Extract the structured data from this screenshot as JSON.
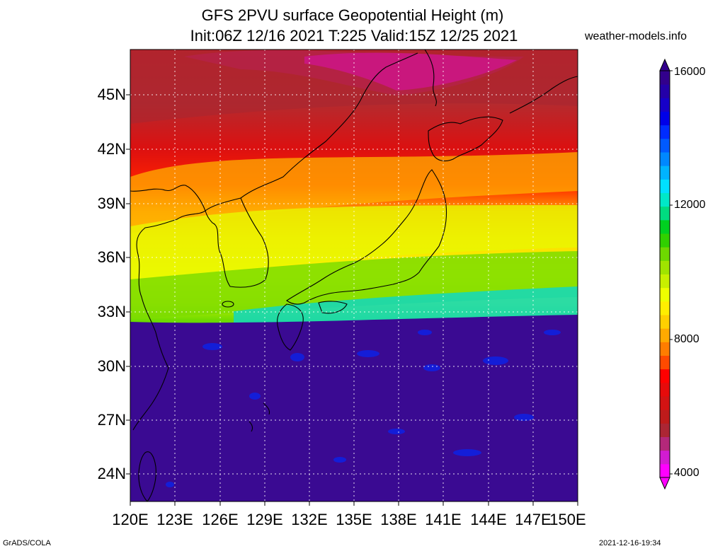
{
  "title": {
    "line1": "GFS 2PVU surface Geopotential Height (m)",
    "line2": "Init:06Z 12/16 2021 T:225 Valid:15Z 12/25 2021"
  },
  "site": "weather-models.info",
  "footer": {
    "left": "GrADS/COLA",
    "right": "2021-12-16-19:34"
  },
  "map": {
    "region": "Japan / Korea / East China Sea",
    "lon_range": [
      120,
      150
    ],
    "lat_range": [
      22.5,
      47.5
    ],
    "lat_labels": [
      "45N",
      "42N",
      "39N",
      "36N",
      "33N",
      "30N",
      "27N",
      "24N"
    ],
    "lon_labels": [
      "120E",
      "123E",
      "126E",
      "129E",
      "132E",
      "135E",
      "138E",
      "141E",
      "144E",
      "147E",
      "150E"
    ],
    "grid": true
  },
  "colorbar": {
    "labels": [
      "16000",
      "12000",
      "8000",
      "4000"
    ],
    "min": 4000,
    "max": 16000,
    "colors": [
      "#ff00ff",
      "#d21cd2",
      "#b4287a",
      "#ac2634",
      "#be1b1b",
      "#d31313",
      "#e60b0b",
      "#ff0000",
      "#ff4a00",
      "#ff7d00",
      "#ffaa00",
      "#ffd000",
      "#ffee00",
      "#eeff00",
      "#c8f000",
      "#a0e400",
      "#6ed800",
      "#30d000",
      "#00d020",
      "#00dc80",
      "#00e8c8",
      "#00e0ff",
      "#00b4ff",
      "#0088ff",
      "#005aff",
      "#002cff",
      "#0000e8",
      "#1600c8",
      "#2400a8",
      "#32008c"
    ]
  }
}
